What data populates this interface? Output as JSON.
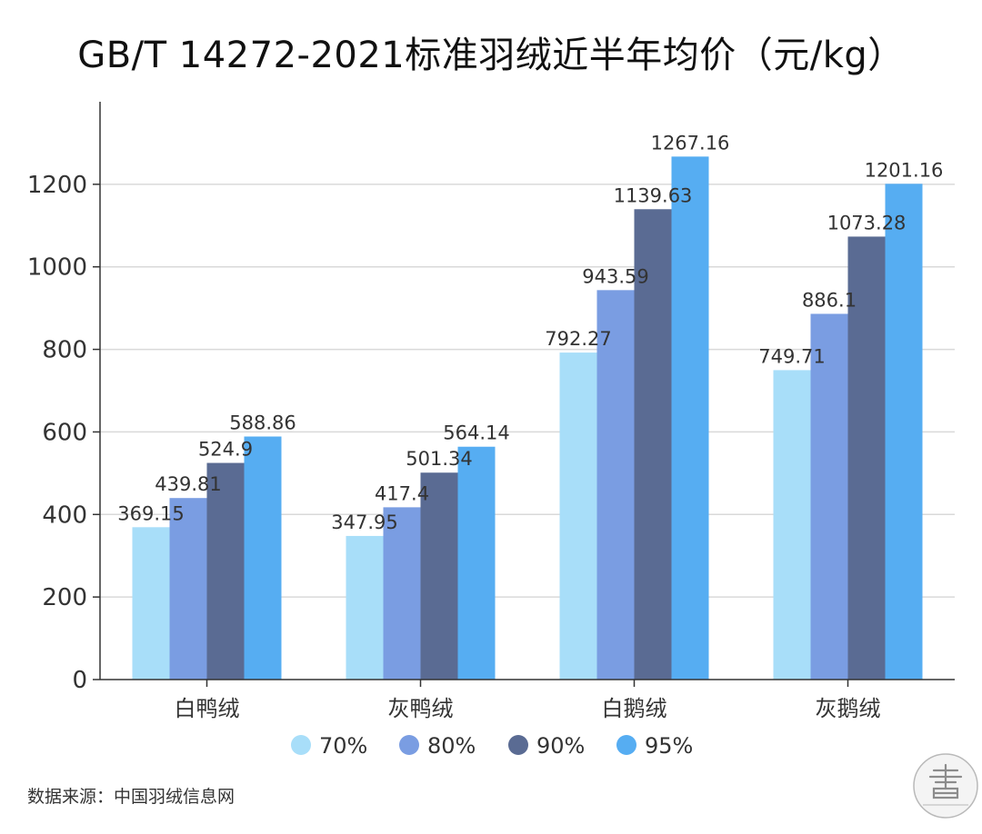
{
  "title": "GB/T 14272-2021标准羽绒近半年均价（元/kg）",
  "source": "数据来源：中国羽绒信息网",
  "watermark": {
    "caption": "letter home"
  },
  "colors": {
    "70%": "#a8def9",
    "80%": "#7a9de2",
    "90%": "#5a6b93",
    "95%": "#56adf2",
    "axis": "#333333",
    "grid": "#d9d9d9",
    "label": "#333333"
  },
  "chart_data": {
    "type": "bar",
    "title": "GB/T 14272-2021标准羽绒近半年均价（元/kg）",
    "xlabel": "",
    "ylabel": "",
    "categories": [
      "白鸭绒",
      "灰鸭绒",
      "白鹅绒",
      "灰鹅绒"
    ],
    "series": [
      {
        "name": "70%",
        "values": [
          369.15,
          347.95,
          792.27,
          749.71
        ],
        "labels": [
          "369.15",
          "347.95",
          "792.27",
          "749.71"
        ]
      },
      {
        "name": "80%",
        "values": [
          439.81,
          417.4,
          943.59,
          886.1
        ],
        "labels": [
          "439.81",
          "417.4",
          "943.59",
          "886.1"
        ]
      },
      {
        "name": "90%",
        "values": [
          524.9,
          501.34,
          1139.63,
          1073.28
        ],
        "labels": [
          "524.9",
          "501.34",
          "1139.63",
          "1073.28"
        ]
      },
      {
        "name": "95%",
        "values": [
          588.86,
          564.14,
          1267.16,
          1201.16
        ],
        "labels": [
          "588.86",
          "564.14",
          "1267.16",
          "1201.16"
        ]
      }
    ],
    "ylim": [
      0,
      1400
    ],
    "yticks": [
      0,
      200,
      400,
      600,
      800,
      1000,
      1200
    ],
    "grid": true,
    "legend": "bottom"
  }
}
